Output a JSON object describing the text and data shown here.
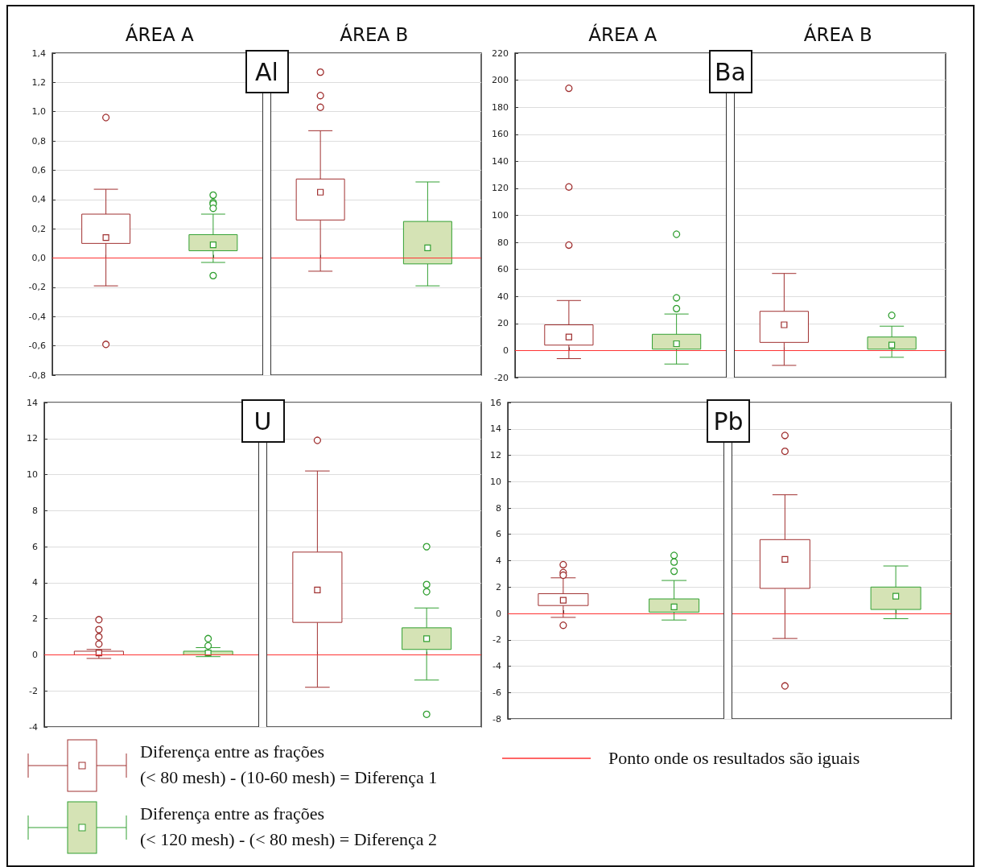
{
  "chart_data": [
    {
      "type": "box",
      "annotations": [
        {
          "text": "ÁREA A"
        },
        {
          "text": "ÁREA B"
        },
        "Al"
      ],
      "categories": [
        null,
        null,
        null,
        null
      ],
      "legend": "bottom",
      "tick_labels": "y",
      "grid": "y",
      "ylim": [
        -0.8,
        1.4
      ],
      "yticks": [
        {
          "value": -0.8,
          "label": "-0,8"
        },
        {
          "value": -0.6,
          "label": "-0,6"
        },
        {
          "value": -0.4,
          "label": "-0,4"
        },
        {
          "value": -0.2,
          "label": "-0,2"
        },
        {
          "value": 0,
          "label": "0,0"
        },
        {
          "value": 0.2,
          "label": "0,2"
        },
        {
          "value": 0.4,
          "label": "0,4"
        },
        {
          "value": 0.6,
          "label": "0,6"
        },
        {
          "value": 0.8,
          "label": "0,8"
        },
        {
          "value": 1.0,
          "label": "1,0"
        },
        {
          "value": 1.2,
          "label": "1,2"
        },
        {
          "value": 1.4,
          "label": "1,4"
        }
      ],
      "ref_lines": [
        {
          "axis": "y",
          "value": 0,
          "label": "Ponto onde os resultados são iguais",
          "color": "#ff3333"
        }
      ],
      "series": [
        {
          "name": "Diferença entre as frações\n(< 80 mesh) - (10-60 mesh) = Diferença 1",
          "color": "#a03030",
          "colors": [
            "#ffffff",
            null,
            "#ffffff",
            null
          ],
          "boxes": [
            {
              "low": -0.19,
              "q1": 0.1,
              "median": 0.14,
              "q3": 0.3,
              "high": 0.47,
              "outliers": [
                0.96,
                -0.59
              ]
            },
            null,
            {
              "low": -0.09,
              "q1": 0.26,
              "median": 0.45,
              "q3": 0.54,
              "high": 0.87,
              "outliers": [
                1.27,
                1.11,
                1.03
              ]
            },
            null
          ]
        },
        {
          "name": "Diferença entre as frações\n(< 120 mesh) - (< 80 mesh) = Diferença 2",
          "color": "#33a033",
          "colors": [
            null,
            "#d5e3b5",
            null,
            "#d5e3b5"
          ],
          "boxes": [
            null,
            {
              "low": -0.03,
              "q1": 0.05,
              "median": 0.09,
              "q3": 0.16,
              "high": 0.3,
              "outliers": [
                0.43,
                0.38,
                0.37,
                0.34,
                -0.12
              ]
            },
            null,
            {
              "low": -0.19,
              "q1": -0.04,
              "median": 0.07,
              "q3": 0.25,
              "high": 0.52
            }
          ]
        }
      ]
    },
    {
      "type": "box",
      "annotations": [
        {
          "text": "ÁREA A"
        },
        {
          "text": "ÁREA B"
        },
        "Ba"
      ],
      "categories": [
        null,
        null,
        null,
        null
      ],
      "tick_labels": "y",
      "grid": "y",
      "ylim": [
        -20,
        220
      ],
      "yticks": [
        -20,
        0,
        20,
        40,
        60,
        80,
        100,
        120,
        140,
        160,
        180,
        200,
        220
      ],
      "ref_lines": [
        {
          "axis": "y",
          "value": 0,
          "color": "#ff3333"
        }
      ],
      "series": [
        {
          "color": "#a03030",
          "colors": [
            "#ffffff",
            null,
            "#ffffff",
            null
          ],
          "boxes": [
            {
              "low": -6,
              "q1": 4,
              "median": 10,
              "q3": 19,
              "high": 37,
              "outliers": [
                194,
                121,
                78
              ]
            },
            null,
            {
              "low": -11,
              "q1": 6,
              "median": 19,
              "q3": 29,
              "high": 57
            },
            null
          ]
        },
        {
          "color": "#33a033",
          "colors": [
            null,
            "#d5e3b5",
            null,
            "#d5e3b5"
          ],
          "boxes": [
            null,
            {
              "low": -10,
              "q1": 1,
              "median": 5,
              "q3": 12,
              "high": 27,
              "outliers": [
                86,
                39,
                31
              ]
            },
            null,
            {
              "low": -5,
              "q1": 1,
              "median": 4,
              "q3": 10,
              "high": 18,
              "outliers": [
                26
              ]
            }
          ]
        }
      ]
    },
    {
      "type": "box",
      "annotations": [
        "U"
      ],
      "categories": [
        null,
        null,
        null,
        null
      ],
      "tick_labels": "y",
      "grid": "y",
      "ylim": [
        -4,
        14
      ],
      "yticks": [
        -4,
        -2,
        0,
        2,
        4,
        6,
        8,
        10,
        12,
        14
      ],
      "ref_lines": [
        {
          "axis": "y",
          "value": 0,
          "color": "#ff3333"
        }
      ],
      "series": [
        {
          "color": "#a03030",
          "colors": [
            "#ffffff",
            null,
            "#ffffff",
            null
          ],
          "boxes": [
            {
              "low": -0.2,
              "q1": 0.0,
              "median": 0.1,
              "q3": 0.2,
              "high": 0.3,
              "outliers": [
                1.95,
                1.4,
                1.0,
                0.6
              ]
            },
            null,
            {
              "low": -1.8,
              "q1": 1.8,
              "median": 3.6,
              "q3": 5.7,
              "high": 10.2,
              "outliers": [
                11.9
              ]
            },
            null
          ]
        },
        {
          "color": "#33a033",
          "colors": [
            null,
            "#d5e3b5",
            null,
            "#d5e3b5"
          ],
          "boxes": [
            null,
            {
              "low": -0.1,
              "q1": 0.0,
              "median": 0.1,
              "q3": 0.2,
              "high": 0.4,
              "outliers": [
                0.9,
                0.5
              ]
            },
            null,
            {
              "low": -1.4,
              "q1": 0.3,
              "median": 0.9,
              "q3": 1.5,
              "high": 2.6,
              "outliers": [
                6.0,
                3.9,
                3.5,
                -3.3
              ]
            }
          ]
        }
      ]
    },
    {
      "type": "box",
      "annotations": [
        "Pb"
      ],
      "categories": [
        null,
        null,
        null,
        null
      ],
      "tick_labels": "y",
      "grid": "y",
      "ylim": [
        -8,
        16
      ],
      "yticks": [
        -8,
        -6,
        -4,
        -2,
        0,
        2,
        4,
        6,
        8,
        10,
        12,
        14,
        16
      ],
      "ref_lines": [
        {
          "axis": "y",
          "value": 0,
          "color": "#ff3333"
        }
      ],
      "series": [
        {
          "color": "#a03030",
          "colors": [
            "#ffffff",
            null,
            "#ffffff",
            null
          ],
          "boxes": [
            {
              "low": -0.3,
              "q1": 0.6,
              "median": 1.0,
              "q3": 1.5,
              "high": 2.7,
              "outliers": [
                3.7,
                3.1,
                2.9,
                -0.9
              ]
            },
            null,
            {
              "low": -1.9,
              "q1": 1.9,
              "median": 4.1,
              "q3": 5.6,
              "high": 9.0,
              "outliers": [
                13.5,
                12.3,
                -5.5
              ]
            },
            null
          ]
        },
        {
          "color": "#33a033",
          "colors": [
            null,
            "#d5e3b5",
            null,
            "#d5e3b5"
          ],
          "boxes": [
            null,
            {
              "low": -0.5,
              "q1": 0.1,
              "median": 0.5,
              "q3": 1.1,
              "high": 2.5,
              "outliers": [
                4.4,
                3.9,
                3.2
              ]
            },
            null,
            {
              "low": -0.4,
              "q1": 0.3,
              "median": 1.3,
              "q3": 2.0,
              "high": 3.6
            }
          ]
        }
      ]
    }
  ]
}
